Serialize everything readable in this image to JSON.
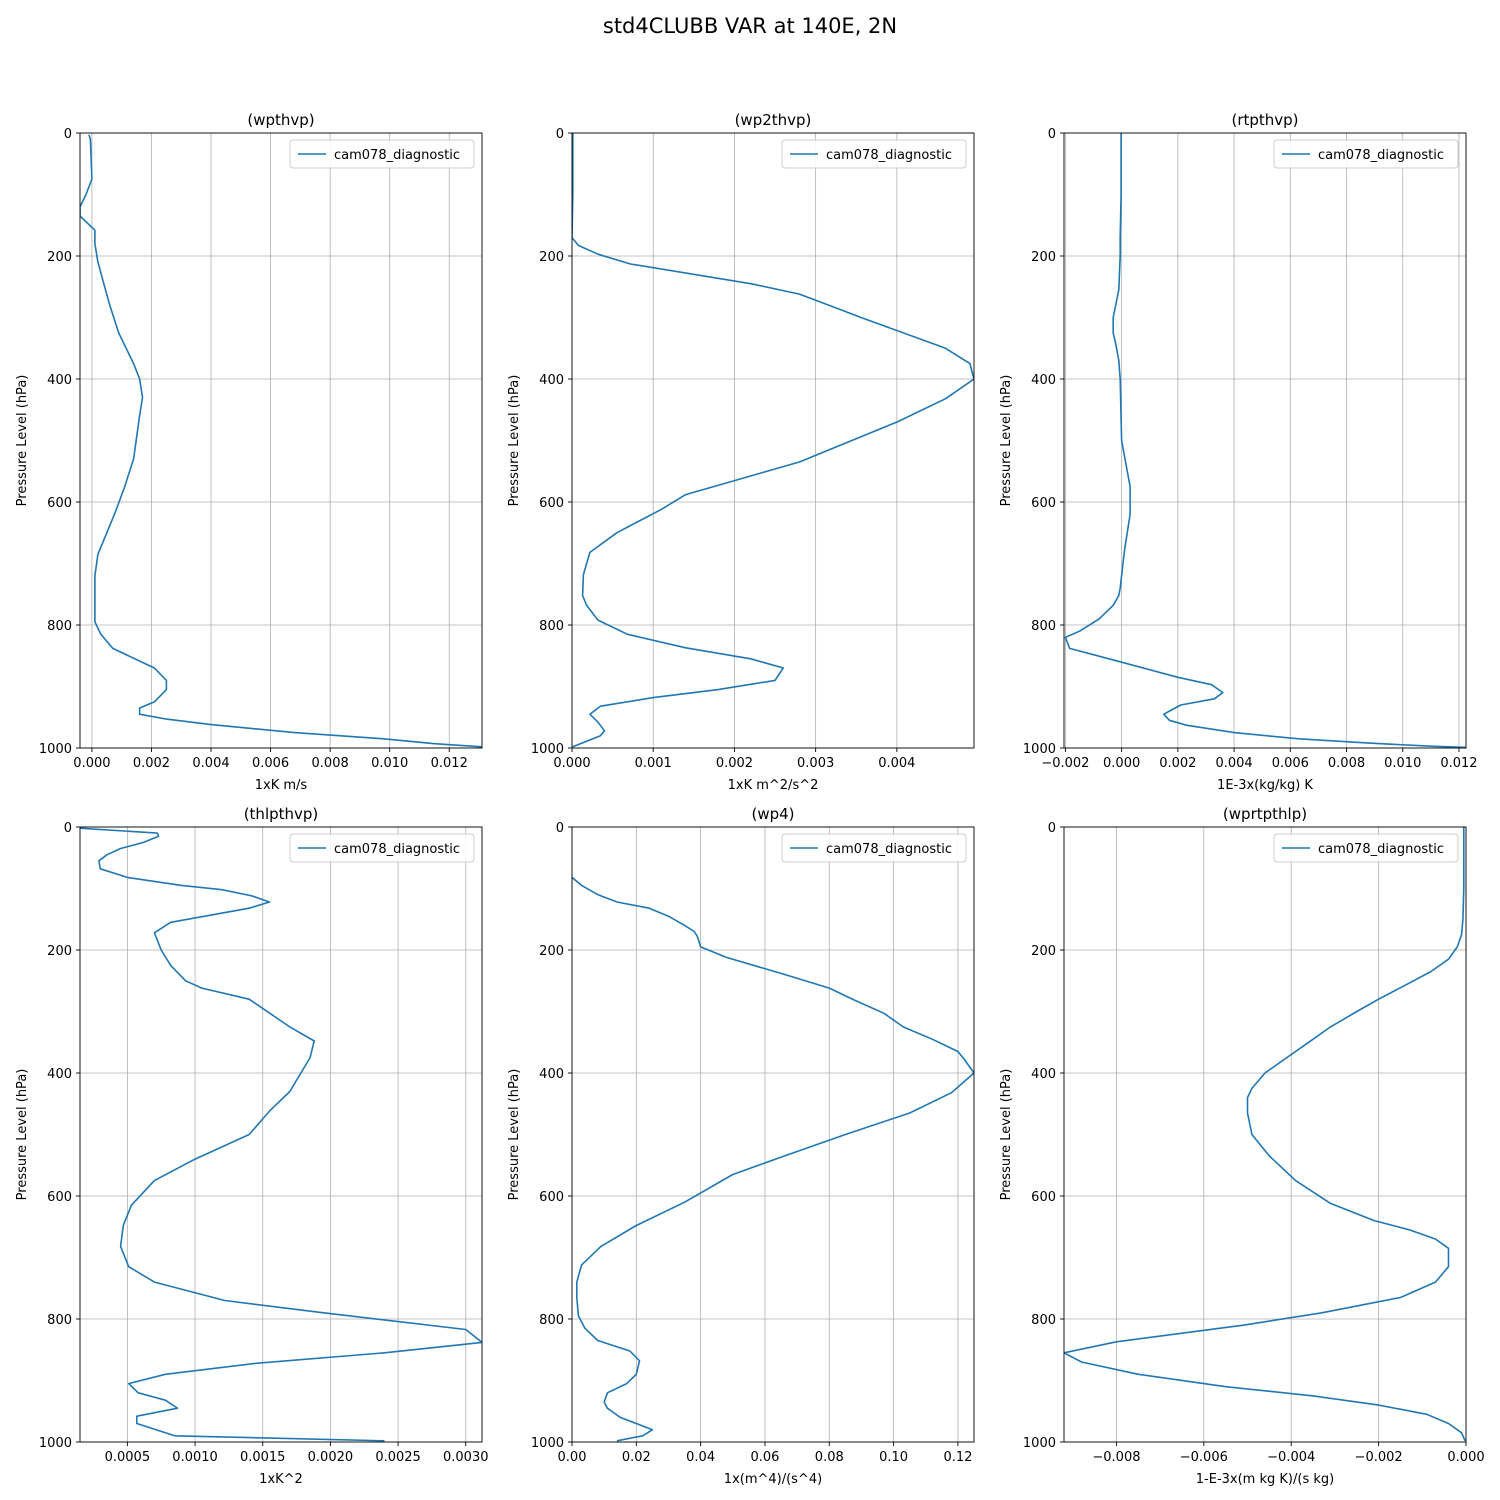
{
  "suptitle": "std4CLUBB VAR at 140E, 2N",
  "chart_data": [
    {
      "type": "line",
      "title": "(wpthvp)",
      "xlabel": "1xK m/s",
      "ylabel": "Pressure Level (hPa)",
      "xlim": [
        -0.0004,
        0.0131
      ],
      "ylim": [
        1000,
        0
      ],
      "xticks": [
        0,
        0.002,
        0.004,
        0.006,
        0.008,
        0.01,
        0.012
      ],
      "xticklabels": [
        "0.000",
        "0.002",
        "0.004",
        "0.006",
        "0.008",
        "0.010",
        "0.012"
      ],
      "yticks": [
        0,
        200,
        400,
        600,
        800,
        1000
      ],
      "grid": true,
      "legend": "top-right",
      "series": [
        {
          "name": "cam078_diagnostic",
          "color": "#1f77b4",
          "x": [
            -0.0001,
            -5e-05,
            0.0,
            -0.0002,
            -0.0004,
            -0.0004,
            0.0001,
            0.0001,
            0.0002,
            0.0004,
            0.0006,
            0.0009,
            0.0014,
            0.0016,
            0.0017,
            0.0016,
            0.0014,
            0.0011,
            0.0008,
            0.0005,
            0.0002,
            0.0001,
            0.0001,
            0.0001,
            0.0003,
            0.0007,
            0.0021,
            0.0025,
            0.0025,
            0.0021,
            0.0016,
            0.0016,
            0.0025,
            0.004,
            0.0068,
            0.0098,
            0.0115,
            0.0131
          ],
          "y": [
            3,
            10,
            75,
            100,
            120,
            135,
            158,
            180,
            210,
            245,
            280,
            325,
            375,
            400,
            430,
            460,
            530,
            575,
            615,
            650,
            685,
            720,
            760,
            795,
            815,
            838,
            870,
            890,
            905,
            925,
            935,
            945,
            953,
            962,
            975,
            985,
            993,
            998
          ]
        }
      ]
    },
    {
      "type": "line",
      "title": "(wp2thvp)",
      "xlabel": "1xK m^2/s^2",
      "ylabel": "Pressure Level (hPa)",
      "xlim": [
        0,
        0.00495
      ],
      "ylim": [
        1000,
        0
      ],
      "xticks": [
        0,
        0.001,
        0.002,
        0.003,
        0.004
      ],
      "xticklabels": [
        "0.000",
        "0.001",
        "0.002",
        "0.003",
        "0.004"
      ],
      "yticks": [
        0,
        200,
        400,
        600,
        800,
        1000
      ],
      "grid": true,
      "legend": "top-right",
      "series": [
        {
          "name": "cam078_diagnostic",
          "color": "#1f77b4",
          "x": [
            1e-05,
            1e-05,
            1e-05,
            0.0,
            8e-05,
            0.00032,
            0.00072,
            0.0022,
            0.0028,
            0.0032,
            0.0036,
            0.0046,
            0.0049,
            0.00495,
            0.0046,
            0.004,
            0.0028,
            0.0014,
            0.0011,
            0.00055,
            0.00022,
            0.00014,
            0.00013,
            0.00018,
            0.00032,
            0.00068,
            0.0014,
            0.0022,
            0.0026,
            0.0025,
            0.0018,
            0.001,
            0.00035,
            0.00022,
            0.00032,
            0.0004,
            0.00035,
            1e-05
          ],
          "y": [
            0,
            50,
            100,
            170,
            183,
            197,
            213,
            245,
            262,
            282,
            302,
            350,
            375,
            400,
            432,
            470,
            535,
            588,
            612,
            650,
            682,
            718,
            752,
            768,
            792,
            815,
            837,
            855,
            870,
            890,
            905,
            918,
            932,
            945,
            958,
            972,
            980,
            998
          ]
        }
      ]
    },
    {
      "type": "line",
      "title": "(rtpthvp)",
      "xlabel": "1E-3x(kg/kg) K",
      "ylabel": "Pressure Level (hPa)",
      "xlim": [
        -0.00205,
        0.01225
      ],
      "ylim": [
        1000,
        0
      ],
      "xticks": [
        -0.002,
        0,
        0.002,
        0.004,
        0.006,
        0.008,
        0.01,
        0.012
      ],
      "xticklabels": [
        "−0.002",
        "0.000",
        "0.002",
        "0.004",
        "0.006",
        "0.008",
        "0.010",
        "0.012"
      ],
      "yticks": [
        0,
        200,
        400,
        600,
        800,
        1000
      ],
      "grid": true,
      "legend": "top-right",
      "series": [
        {
          "name": "cam078_diagnostic",
          "color": "#1f77b4",
          "x": [
            -2e-05,
            -2e-05,
            -2e-05,
            -5e-05,
            -5e-05,
            -0.0001,
            -0.0003,
            -0.0003,
            -0.0002,
            -0.0001,
            -5e-05,
            0.0,
            0.0003,
            0.0003,
            0.0001,
            -5e-05,
            -0.0001,
            -0.0003,
            -0.0008,
            -0.0015,
            -0.002,
            -0.00185,
            -0.0002,
            0.002,
            0.0032,
            0.0036,
            0.0033,
            0.0021,
            0.0015,
            0.0017,
            0.0023,
            0.004,
            0.0063,
            0.0088,
            0.011,
            0.01225
          ],
          "y": [
            0,
            50,
            100,
            170,
            200,
            255,
            300,
            325,
            345,
            370,
            400,
            500,
            575,
            620,
            680,
            740,
            752,
            768,
            790,
            810,
            820,
            838,
            858,
            885,
            897,
            910,
            920,
            930,
            945,
            955,
            963,
            975,
            985,
            992,
            997,
            999
          ]
        }
      ]
    },
    {
      "type": "line",
      "title": "(thlpthvp)",
      "xlabel": "1xK^2",
      "ylabel": "Pressure Level (hPa)",
      "xlim": [
        0.00015,
        0.00312
      ],
      "ylim": [
        1000,
        0
      ],
      "xticks": [
        0.0005,
        0.001,
        0.0015,
        0.002,
        0.0025,
        0.003
      ],
      "xticklabels": [
        "0.0005",
        "0.0010",
        "0.0015",
        "0.0020",
        "0.0025",
        "0.0030"
      ],
      "yticks": [
        0,
        200,
        400,
        600,
        800,
        1000
      ],
      "grid": true,
      "legend": "top-right",
      "series": [
        {
          "name": "cam078_diagnostic",
          "color": "#1f77b4",
          "x": [
            0.00015,
            0.00072,
            0.00073,
            0.00062,
            0.00045,
            0.00035,
            0.00029,
            0.0003,
            0.0005,
            0.0009,
            0.0012,
            0.00142,
            0.00155,
            0.0014,
            0.00082,
            0.0007,
            0.00075,
            0.00082,
            0.00093,
            0.00105,
            0.0014,
            0.0017,
            0.00188,
            0.00185,
            0.0017,
            0.00155,
            0.0014,
            0.001,
            0.0007,
            0.00053,
            0.00047,
            0.00045,
            0.00051,
            0.0007,
            0.00122,
            0.00195,
            0.003,
            0.00312,
            0.0024,
            0.00145,
            0.00078,
            0.00051,
            0.00058,
            0.00078,
            0.00087,
            0.00057,
            0.00057,
            0.00085,
            0.0024
          ],
          "y": [
            2,
            10,
            15,
            25,
            35,
            45,
            55,
            68,
            82,
            95,
            102,
            112,
            122,
            132,
            155,
            172,
            200,
            225,
            250,
            262,
            280,
            325,
            348,
            375,
            430,
            462,
            500,
            540,
            575,
            615,
            648,
            682,
            715,
            740,
            770,
            790,
            817,
            838,
            855,
            872,
            890,
            905,
            920,
            932,
            945,
            958,
            970,
            990,
            998
          ]
        }
      ]
    },
    {
      "type": "line",
      "title": "(wp4)",
      "xlabel": "1x(m^4)/(s^4)",
      "ylabel": "Pressure Level (hPa)",
      "xlim": [
        0,
        0.125
      ],
      "ylim": [
        1000,
        0
      ],
      "xticks": [
        0,
        0.02,
        0.04,
        0.06,
        0.08,
        0.1,
        0.12
      ],
      "xticklabels": [
        "0.00",
        "0.02",
        "0.04",
        "0.06",
        "0.08",
        "0.10",
        "0.12"
      ],
      "yticks": [
        0,
        200,
        400,
        600,
        800,
        1000
      ],
      "grid": true,
      "legend": "top-right",
      "series": [
        {
          "name": "cam078_diagnostic",
          "color": "#1f77b4",
          "x": [
            0.0,
            0.003,
            0.008,
            0.014,
            0.024,
            0.03,
            0.035,
            0.038,
            0.039,
            0.04,
            0.048,
            0.065,
            0.08,
            0.088,
            0.097,
            0.103,
            0.112,
            0.12,
            0.122,
            0.125,
            0.118,
            0.105,
            0.085,
            0.066,
            0.05,
            0.035,
            0.02,
            0.009,
            0.003,
            0.0015,
            0.0015,
            0.002,
            0.004,
            0.008,
            0.018,
            0.021,
            0.02,
            0.017,
            0.011,
            0.01,
            0.011,
            0.015,
            0.02,
            0.025,
            0.022,
            0.014
          ],
          "y": [
            82,
            95,
            110,
            122,
            132,
            145,
            160,
            170,
            178,
            195,
            212,
            238,
            262,
            282,
            303,
            325,
            345,
            365,
            378,
            400,
            432,
            465,
            500,
            535,
            565,
            610,
            648,
            682,
            712,
            740,
            765,
            795,
            815,
            835,
            852,
            868,
            890,
            905,
            920,
            935,
            945,
            960,
            970,
            980,
            990,
            998
          ]
        }
      ]
    },
    {
      "type": "line",
      "title": "(wprtpthlp)",
      "xlabel": "1-E-3x(m kg K)/(s kg)",
      "ylabel": "Pressure Level (hPa)",
      "xlim": [
        -0.0092,
        0.0
      ],
      "ylim": [
        1000,
        0
      ],
      "xticks": [
        -0.008,
        -0.006,
        -0.004,
        -0.002,
        0
      ],
      "xticklabels": [
        "−0.008",
        "−0.006",
        "−0.004",
        "−0.002",
        "0.000"
      ],
      "yticks": [
        0,
        200,
        400,
        600,
        800,
        1000
      ],
      "grid": true,
      "legend": "top-right",
      "series": [
        {
          "name": "cam078_diagnostic",
          "color": "#1f77b4",
          "x": [
            -5e-05,
            -5e-05,
            -5e-05,
            -7e-05,
            -0.0001,
            -0.0002,
            -0.0004,
            -0.0008,
            -0.0012,
            -0.0016,
            -0.002,
            -0.0025,
            -0.0031,
            -0.0036,
            -0.0041,
            -0.0046,
            -0.0049,
            -0.005,
            -0.005,
            -0.0049,
            -0.0045,
            -0.0039,
            -0.0031,
            -0.0021,
            -0.0013,
            -0.0007,
            -0.0004,
            -0.0004,
            -0.0007,
            -0.0015,
            -0.0033,
            -0.0051,
            -0.008,
            -0.0092,
            -0.0088,
            -0.0075,
            -0.0055,
            -0.0035,
            -0.002,
            -0.0009,
            -0.0004,
            -0.0001,
            -2e-05
          ],
          "y": [
            0,
            50,
            100,
            150,
            175,
            195,
            215,
            235,
            250,
            265,
            280,
            300,
            325,
            350,
            375,
            400,
            425,
            440,
            465,
            500,
            535,
            575,
            612,
            640,
            655,
            670,
            685,
            715,
            740,
            765,
            790,
            810,
            837,
            855,
            870,
            890,
            910,
            925,
            940,
            955,
            970,
            985,
            998
          ]
        }
      ]
    }
  ]
}
